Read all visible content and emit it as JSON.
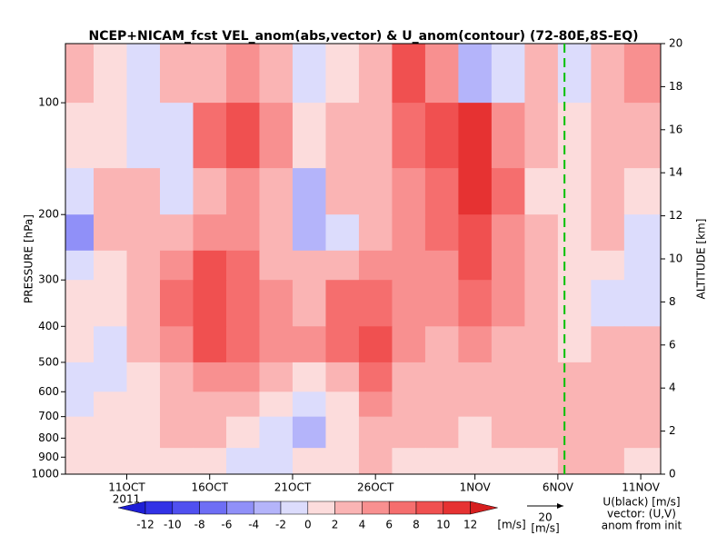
{
  "chart_data": {
    "type": "heatmap",
    "title": "NCEP+NICAM_fcst VEL_anom(abs,vector) & U_anom(contour)   (72-80E,8S-EQ)",
    "ylabel": "PRESSURE [hPa]",
    "y2label": "ALTITUDE [km]",
    "year_label": "2011",
    "x_edges": [
      7.3,
      9,
      11,
      13,
      15,
      17,
      19,
      21,
      23,
      25,
      27,
      29,
      31,
      33,
      35,
      37,
      39,
      41,
      43.2
    ],
    "p_edges": [
      69.3,
      100,
      150,
      200,
      250,
      300,
      400,
      500,
      600,
      700,
      850,
      1000
    ],
    "values": [
      [
        3,
        1,
        -1,
        3,
        3,
        5,
        3,
        -1,
        1,
        3,
        9,
        5,
        -3,
        -1,
        3,
        -1,
        3,
        5
      ],
      [
        1,
        1,
        -1,
        -1,
        7,
        9,
        5,
        1,
        3,
        3,
        7,
        9,
        11,
        5,
        3,
        1,
        3,
        3
      ],
      [
        -1,
        3,
        3,
        -1,
        3,
        5,
        3,
        -3,
        3,
        3,
        5,
        7,
        11,
        7,
        1,
        1,
        3,
        1
      ],
      [
        -5,
        3,
        3,
        3,
        5,
        5,
        3,
        -3,
        -1,
        3,
        5,
        7,
        9,
        5,
        3,
        1,
        3,
        -1
      ],
      [
        -1,
        1,
        3,
        5,
        9,
        7,
        3,
        3,
        3,
        5,
        5,
        5,
        9,
        5,
        3,
        1,
        1,
        -1
      ],
      [
        1,
        1,
        3,
        7,
        9,
        7,
        5,
        3,
        7,
        7,
        5,
        5,
        7,
        5,
        3,
        1,
        -1,
        -1
      ],
      [
        1,
        -1,
        3,
        5,
        9,
        7,
        5,
        5,
        7,
        9,
        5,
        3,
        5,
        3,
        3,
        1,
        3,
        3
      ],
      [
        -1,
        -1,
        1,
        3,
        5,
        5,
        3,
        1,
        3,
        7,
        3,
        3,
        3,
        3,
        3,
        3,
        3,
        3
      ],
      [
        -1,
        1,
        1,
        3,
        3,
        3,
        1,
        -1,
        1,
        5,
        3,
        3,
        3,
        3,
        3,
        3,
        3,
        3
      ],
      [
        1,
        1,
        1,
        3,
        3,
        1,
        -1,
        -3,
        1,
        3,
        3,
        3,
        1,
        3,
        3,
        3,
        3,
        3
      ],
      [
        1,
        1,
        1,
        1,
        1,
        -1,
        -1,
        1,
        1,
        3,
        1,
        1,
        1,
        1,
        1,
        3,
        3,
        1
      ]
    ],
    "xlim": [
      7.3,
      43.2
    ],
    "xticks": [
      {
        "value": 11,
        "label": "11OCT"
      },
      {
        "value": 16,
        "label": "16OCT"
      },
      {
        "value": 21,
        "label": "21OCT"
      },
      {
        "value": 26,
        "label": "26OCT"
      },
      {
        "value": 32,
        "label": "1NOV"
      },
      {
        "value": 37,
        "label": "6NOV"
      },
      {
        "value": 42,
        "label": "11NOV"
      }
    ],
    "ylim": [
      1000,
      69.3
    ],
    "log_y": true,
    "yticks": [
      100,
      200,
      300,
      400,
      500,
      600,
      700,
      800,
      900,
      1000
    ],
    "y2lim": [
      0,
      20
    ],
    "y2ticks": [
      0,
      2,
      4,
      6,
      8,
      10,
      12,
      14,
      16,
      18,
      20
    ],
    "init_line": {
      "x": 37.4,
      "color": "#00c000"
    },
    "levels": [
      -12,
      -10,
      -8,
      -6,
      -4,
      -2,
      0,
      2,
      4,
      6,
      8,
      10,
      12
    ],
    "colors": [
      "#1e1ed6",
      "#3232e6",
      "#5050f0",
      "#6e6ef5",
      "#9090f8",
      "#b4b4fa",
      "#dcdcfc",
      "#fcdcdc",
      "#fab4b4",
      "#f89090",
      "#f56e6e",
      "#f05050",
      "#e63232",
      "#d61e1e"
    ],
    "colorbar_unit": "[m/s]",
    "vector_scale": {
      "value": 20,
      "unit": "[m/s]"
    },
    "legend_lines": [
      "U(black) [m/s]",
      "vector: (U,V)",
      "anom from init"
    ]
  }
}
